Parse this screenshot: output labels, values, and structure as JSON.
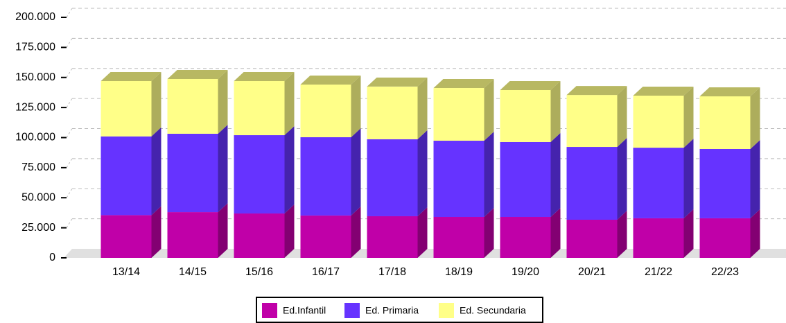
{
  "chart_data": {
    "type": "bar3d_stacked",
    "categories": [
      "13/14",
      "14/15",
      "15/16",
      "16/17",
      "17/18",
      "18/19",
      "19/20",
      "20/21",
      "21/22",
      "22/23"
    ],
    "series": [
      {
        "name": "Ed.Infantil",
        "color": "#c000a8",
        "values": [
          35500,
          38000,
          36900,
          35200,
          34600,
          34000,
          34000,
          31700,
          32900,
          32900
        ]
      },
      {
        "name": "Ed. Primaria",
        "color": "#6633ff",
        "values": [
          65500,
          65200,
          65100,
          65100,
          64000,
          63400,
          62300,
          60500,
          58700,
          57600
        ]
      },
      {
        "name": "Ed. Secundaria",
        "color": "#ffff88",
        "values": [
          46000,
          45500,
          45000,
          43800,
          43800,
          43800,
          43200,
          43200,
          43300,
          43800
        ]
      }
    ],
    "ylim": [
      0,
      200000
    ],
    "yticks": [
      0,
      {
        "value": 25000,
        "label": "25.000"
      },
      {
        "value": 50000,
        "label": "50.000"
      },
      {
        "value": 75000,
        "label": "75.000"
      },
      {
        "value": 100000,
        "label": "100.000"
      },
      {
        "value": 125000,
        "label": "125.000"
      },
      {
        "value": 150000,
        "label": "150.000"
      },
      {
        "value": 175000,
        "label": "175.000"
      },
      {
        "value": 200000,
        "label": "200.000"
      }
    ],
    "grid": true,
    "legend": "bottom"
  }
}
